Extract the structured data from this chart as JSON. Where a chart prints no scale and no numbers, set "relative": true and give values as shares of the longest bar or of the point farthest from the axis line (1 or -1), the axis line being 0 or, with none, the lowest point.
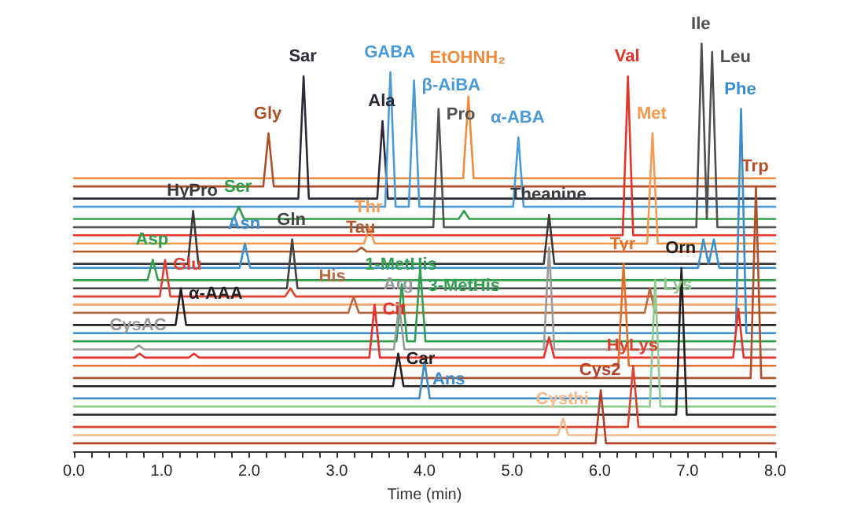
{
  "chart_data": {
    "type": "line",
    "relative": true,
    "xlabel": "Time (min)",
    "xlim": [
      0,
      8
    ],
    "xticks": [
      {
        "value": 0,
        "label": "0.0"
      },
      {
        "value": 0.2,
        "label": null
      },
      {
        "value": 0.4,
        "label": null
      },
      {
        "value": 0.6,
        "label": null
      },
      {
        "value": 0.8,
        "label": null
      },
      {
        "value": 1,
        "label": "1.0"
      },
      {
        "value": 1.2,
        "label": null
      },
      {
        "value": 1.4,
        "label": null
      },
      {
        "value": 1.6,
        "label": null
      },
      {
        "value": 1.8,
        "label": null
      },
      {
        "value": 2,
        "label": "2.0"
      },
      {
        "value": 2.2,
        "label": null
      },
      {
        "value": 2.4,
        "label": null
      },
      {
        "value": 2.6,
        "label": null
      },
      {
        "value": 2.8,
        "label": null
      },
      {
        "value": 3,
        "label": "3.0"
      },
      {
        "value": 3.2,
        "label": null
      },
      {
        "value": 3.4,
        "label": null
      },
      {
        "value": 3.6,
        "label": null
      },
      {
        "value": 3.8,
        "label": null
      },
      {
        "value": 4,
        "label": "4.0"
      },
      {
        "value": 4.2,
        "label": null
      },
      {
        "value": 4.4,
        "label": null
      },
      {
        "value": 4.6,
        "label": null
      },
      {
        "value": 4.8,
        "label": null
      },
      {
        "value": 5,
        "label": "5.0"
      },
      {
        "value": 5.2,
        "label": null
      },
      {
        "value": 5.4,
        "label": null
      },
      {
        "value": 5.6,
        "label": null
      },
      {
        "value": 5.8,
        "label": null
      },
      {
        "value": 6,
        "label": "6.0"
      },
      {
        "value": 6.2,
        "label": null
      },
      {
        "value": 6.4,
        "label": null
      },
      {
        "value": 6.6,
        "label": null
      },
      {
        "value": 6.8,
        "label": null
      },
      {
        "value": 7,
        "label": "7.0"
      },
      {
        "value": 7.2,
        "label": null
      },
      {
        "value": 7.4,
        "label": null
      },
      {
        "value": 7.6,
        "label": null
      },
      {
        "value": 7.8,
        "label": null
      },
      {
        "value": 8,
        "label": "8.0"
      }
    ],
    "grid": false,
    "marker": "none",
    "series": [
      {
        "color": "#f08a3c",
        "x": [
          0,
          4.44,
          4.5,
          4.56,
          8
        ],
        "values": [
          0.67,
          0.67,
          0.87,
          0.67,
          0.67
        ]
      },
      {
        "color": "#b0502a",
        "x": [
          0,
          2.16,
          2.22,
          2.28,
          8
        ],
        "values": [
          0.65,
          0.65,
          0.78,
          0.65,
          0.65
        ]
      },
      {
        "color": "#2b2b38",
        "x": [
          0,
          2.56,
          2.62,
          2.68,
          3.46,
          3.52,
          3.58,
          8
        ],
        "values": [
          0.62,
          0.62,
          0.92,
          0.62,
          0.62,
          0.81,
          0.62,
          0.62
        ]
      },
      {
        "color": "#4a9ad8",
        "x": [
          0,
          3.55,
          3.61,
          3.67,
          3.82,
          3.88,
          3.94,
          5.01,
          5.07,
          5.13,
          8
        ],
        "values": [
          0.6,
          0.6,
          0.93,
          0.6,
          0.6,
          0.91,
          0.6,
          0.6,
          0.77,
          0.6,
          0.6
        ]
      },
      {
        "color": "#2e9e48",
        "x": [
          0,
          1.82,
          1.88,
          1.94,
          4.39,
          4.45,
          4.51,
          8
        ],
        "values": [
          0.57,
          0.57,
          0.6,
          0.57,
          0.57,
          0.59,
          0.57,
          0.57
        ]
      },
      {
        "color": "#505050",
        "x": [
          0,
          4.1,
          4.16,
          4.22,
          7.1,
          7.16,
          7.22,
          7.28,
          7.34,
          8
        ],
        "values": [
          0.55,
          0.55,
          0.84,
          0.55,
          0.55,
          1,
          0.57,
          0.98,
          0.55,
          0.55
        ]
      },
      {
        "color": "#e53328",
        "x": [
          0,
          6.26,
          6.32,
          6.38,
          8
        ],
        "values": [
          0.53,
          0.53,
          0.92,
          0.53,
          0.53
        ]
      },
      {
        "color": "#f59a50",
        "x": [
          0,
          3.31,
          3.37,
          3.43,
          6.54,
          6.6,
          6.66,
          8
        ],
        "values": [
          0.51,
          0.51,
          0.55,
          0.51,
          0.51,
          0.78,
          0.51,
          0.51
        ]
      },
      {
        "color": "#b35a30",
        "x": [
          0,
          3.22,
          3.28,
          3.34,
          8
        ],
        "values": [
          0.49,
          0.49,
          0.5,
          0.49,
          0.49
        ]
      },
      {
        "color": "#3a3a3a",
        "x": [
          0,
          1.3,
          1.36,
          1.42,
          5.36,
          5.42,
          5.48,
          8
        ],
        "values": [
          0.46,
          0.46,
          0.59,
          0.46,
          0.46,
          0.58,
          0.46,
          0.46
        ]
      },
      {
        "color": "#3c8fd0",
        "x": [
          0,
          1.89,
          1.95,
          2.01,
          7.12,
          7.18,
          7.24,
          7.3,
          7.36,
          8
        ],
        "values": [
          0.45,
          0.45,
          0.51,
          0.45,
          0.45,
          0.52,
          0.46,
          0.52,
          0.45,
          0.45
        ]
      },
      {
        "color": "#30a048",
        "x": [
          0,
          0.84,
          0.9,
          0.96,
          8
        ],
        "values": [
          0.42,
          0.42,
          0.47,
          0.42,
          0.42
        ]
      },
      {
        "color": "#444444",
        "x": [
          0,
          2.43,
          2.49,
          2.55,
          8
        ],
        "values": [
          0.4,
          0.4,
          0.52,
          0.4,
          0.4
        ]
      },
      {
        "color": "#e0402e",
        "x": [
          0,
          0.98,
          1.04,
          1.1,
          2.41,
          2.47,
          2.53,
          8
        ],
        "values": [
          0.38,
          0.38,
          0.47,
          0.38,
          0.38,
          0.4,
          0.38,
          0.38
        ]
      },
      {
        "color": "#f5a060",
        "x": [
          0,
          8
        ],
        "values": [
          0.36,
          0.36
        ]
      },
      {
        "color": "#b86a40",
        "x": [
          0,
          3.13,
          3.19,
          3.25,
          6.51,
          6.57,
          6.63,
          8
        ],
        "values": [
          0.34,
          0.34,
          0.38,
          0.34,
          0.34,
          0.4,
          0.34,
          0.34
        ]
      },
      {
        "color": "#222222",
        "x": [
          0,
          1.16,
          1.22,
          1.28,
          8
        ],
        "values": [
          0.31,
          0.31,
          0.4,
          0.31,
          0.31
        ]
      },
      {
        "color": "#3a8ccc",
        "x": [
          0,
          7.55,
          7.61,
          7.67,
          8
        ],
        "values": [
          0.29,
          0.29,
          0.84,
          0.29,
          0.29
        ]
      },
      {
        "color": "#30a050",
        "x": [
          0,
          3.68,
          3.74,
          3.8,
          3.89,
          3.95,
          4.01,
          8
        ],
        "values": [
          0.27,
          0.27,
          0.41,
          0.27,
          0.27,
          0.45,
          0.27,
          0.27
        ]
      },
      {
        "color": "#9a9a9a",
        "x": [
          0,
          0.68,
          0.74,
          0.8,
          3.65,
          3.71,
          3.77,
          5.36,
          5.42,
          5.48,
          8
        ],
        "values": [
          0.25,
          0.25,
          0.26,
          0.25,
          0.25,
          0.36,
          0.25,
          0.25,
          0.5,
          0.25,
          0.25
        ]
      },
      {
        "color": "#e8302a",
        "x": [
          0,
          0.69,
          0.75,
          0.81,
          1.31,
          1.37,
          1.43,
          3.37,
          3.43,
          3.49,
          5.36,
          5.42,
          5.48,
          7.52,
          7.58,
          7.64,
          8
        ],
        "values": [
          0.23,
          0.23,
          0.24,
          0.23,
          0.23,
          0.24,
          0.23,
          0.23,
          0.36,
          0.23,
          0.23,
          0.28,
          0.23,
          0.23,
          0.35,
          0.23,
          0.23
        ]
      },
      {
        "color": "#e0702a",
        "x": [
          0,
          6.21,
          6.27,
          6.33,
          8
        ],
        "values": [
          0.21,
          0.21,
          0.46,
          0.21,
          0.21
        ]
      },
      {
        "color": "#b0502a",
        "x": [
          0,
          7.72,
          7.78,
          7.84,
          8
        ],
        "values": [
          0.18,
          0.18,
          0.65,
          0.18,
          0.18
        ]
      },
      {
        "color": "#222222",
        "x": [
          0,
          3.64,
          3.7,
          3.76,
          8
        ],
        "values": [
          0.16,
          0.16,
          0.24,
          0.16,
          0.16
        ]
      },
      {
        "color": "#3a8ccc",
        "x": [
          0,
          3.94,
          4,
          4.06,
          8
        ],
        "values": [
          0.13,
          0.13,
          0.22,
          0.13,
          0.13
        ]
      },
      {
        "color": "#8fcb8f",
        "x": [
          0,
          6.57,
          6.63,
          6.69,
          8
        ],
        "values": [
          0.11,
          0.11,
          0.42,
          0.11,
          0.11
        ]
      },
      {
        "color": "#222222",
        "x": [
          0,
          6.87,
          6.93,
          6.99,
          8
        ],
        "values": [
          0.09,
          0.09,
          0.45,
          0.09,
          0.09
        ]
      },
      {
        "color": "#e0402e",
        "x": [
          0,
          6.32,
          6.38,
          6.44,
          8
        ],
        "values": [
          0.06,
          0.06,
          0.21,
          0.06,
          0.06
        ]
      },
      {
        "color": "#f7b98a",
        "x": [
          0,
          5.52,
          5.58,
          5.64,
          8
        ],
        "values": [
          0.04,
          0.04,
          0.08,
          0.04,
          0.04
        ]
      },
      {
        "color": "#b0402a",
        "x": [
          0,
          5.95,
          6.01,
          6.07,
          8
        ],
        "values": [
          0.02,
          0.02,
          0.15,
          0.02,
          0.02
        ]
      }
    ],
    "annotations": [
      {
        "text": "Sar",
        "x": 2.62,
        "y": 0.92
      },
      {
        "text": "GABA",
        "x": 3.61,
        "y": 0.93
      },
      {
        "text": "β-AiBA",
        "x": 3.88,
        "y": 0.91
      },
      {
        "text": "Gly",
        "x": 2.22,
        "y": 0.78
      },
      {
        "text": "Ala",
        "x": 3.52,
        "y": 0.81
      },
      {
        "text": "Pro",
        "x": 4.16,
        "y": 0.84
      },
      {
        "text": "EtOHNH₂",
        "x": 4.5,
        "y": 0.87
      },
      {
        "text": "α-ABA",
        "x": 5.07,
        "y": 0.77
      },
      {
        "text": "Val",
        "x": 6.32,
        "y": 0.92
      },
      {
        "text": "Met",
        "x": 6.6,
        "y": 0.78
      },
      {
        "text": "Ile",
        "x": 7.16,
        "y": 1
      },
      {
        "text": "Leu",
        "x": 7.28,
        "y": 0.98
      },
      {
        "text": "Phe",
        "x": 7.61,
        "y": 0.84
      },
      {
        "text": "Trp",
        "x": 7.78,
        "y": 0.65
      },
      {
        "text": "HyPro",
        "x": 1.36,
        "y": 0.59
      },
      {
        "text": "Ser",
        "x": 1.88,
        "y": 0.6
      },
      {
        "text": "Asn",
        "x": 1.95,
        "y": 0.51
      },
      {
        "text": "Gln",
        "x": 2.49,
        "y": 0.52
      },
      {
        "text": "Thr",
        "x": 3.37,
        "y": 0.55
      },
      {
        "text": "Tau",
        "x": 3.28,
        "y": 0.5
      },
      {
        "text": "Theanine",
        "x": 5.42,
        "y": 0.58
      },
      {
        "text": "Asp",
        "x": 0.9,
        "y": 0.47
      },
      {
        "text": "Glu",
        "x": 1.04,
        "y": 0.47
      },
      {
        "text": "Arg",
        "x": 3.71,
        "y": 0.36
      },
      {
        "text": "1-MetHis",
        "x": 3.74,
        "y": 0.41
      },
      {
        "text": "α-AAA",
        "x": 1.22,
        "y": 0.4
      },
      {
        "text": "His",
        "x": 3.19,
        "y": 0.38
      },
      {
        "text": "Cit",
        "x": 3.43,
        "y": 0.36
      },
      {
        "text": "3-MetHis",
        "x": 3.95,
        "y": 0.45
      },
      {
        "text": "Tyr",
        "x": 6.27,
        "y": 0.46
      },
      {
        "text": "Orn",
        "x": 6.93,
        "y": 0.45
      },
      {
        "text": "Lys",
        "x": 6.63,
        "y": 0.42
      },
      {
        "text": "CysAC",
        "x": 0.74,
        "y": 0.26
      },
      {
        "text": "HyLys",
        "x": 6.38,
        "y": 0.21
      },
      {
        "text": "Car",
        "x": 3.7,
        "y": 0.24
      },
      {
        "text": "Ans",
        "x": 4,
        "y": 0.22
      },
      {
        "text": "Cys2",
        "x": 6.01,
        "y": 0.15
      },
      {
        "text": "Cysthi",
        "x": 5.58,
        "y": 0.08
      }
    ]
  }
}
